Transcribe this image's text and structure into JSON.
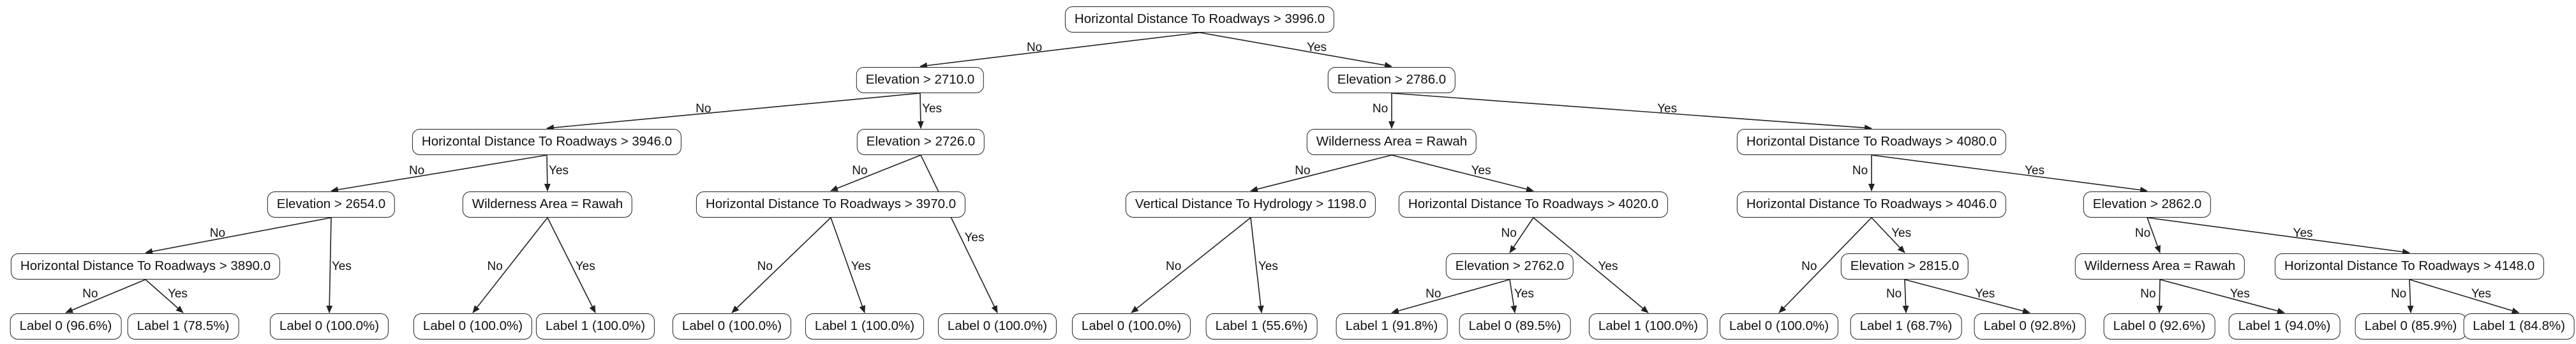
{
  "tree": {
    "nodes": [
      {
        "id": "n0",
        "text": "Horizontal Distance To Roadways > 3996.0"
      },
      {
        "id": "n1",
        "text": "Elevation > 2710.0"
      },
      {
        "id": "n2",
        "text": "Elevation > 2786.0"
      },
      {
        "id": "n3",
        "text": "Horizontal Distance To Roadways > 3946.0"
      },
      {
        "id": "n4",
        "text": "Elevation > 2726.0"
      },
      {
        "id": "n5",
        "text": "Wilderness Area = Rawah"
      },
      {
        "id": "n6",
        "text": "Horizontal Distance To Roadways > 4080.0"
      },
      {
        "id": "n7",
        "text": "Elevation > 2654.0"
      },
      {
        "id": "n8",
        "text": "Wilderness Area = Rawah"
      },
      {
        "id": "n9",
        "text": "Horizontal Distance To Roadways > 3970.0"
      },
      {
        "id": "n10",
        "text": "Vertical Distance To Hydrology > 1198.0"
      },
      {
        "id": "n11",
        "text": "Horizontal Distance To Roadways > 4020.0"
      },
      {
        "id": "n12",
        "text": "Horizontal Distance To Roadways > 4046.0"
      },
      {
        "id": "n13",
        "text": "Elevation > 2862.0"
      },
      {
        "id": "n14",
        "text": "Horizontal Distance To Roadways > 3890.0"
      },
      {
        "id": "n15",
        "text": "Elevation > 2762.0"
      },
      {
        "id": "n16",
        "text": "Elevation > 2815.0"
      },
      {
        "id": "n17",
        "text": "Wilderness Area = Rawah"
      },
      {
        "id": "n18",
        "text": "Horizontal Distance To Roadways > 4148.0"
      },
      {
        "id": "l1",
        "text": "Label 0 (96.6%)"
      },
      {
        "id": "l2",
        "text": "Label 1 (78.5%)"
      },
      {
        "id": "l3",
        "text": "Label 0 (100.0%)"
      },
      {
        "id": "l4",
        "text": "Label 0 (100.0%)"
      },
      {
        "id": "l5",
        "text": "Label 1 (100.0%)"
      },
      {
        "id": "l6",
        "text": "Label 0 (100.0%)"
      },
      {
        "id": "l7",
        "text": "Label 1 (100.0%)"
      },
      {
        "id": "l8",
        "text": "Label 0 (100.0%)"
      },
      {
        "id": "l9",
        "text": "Label 0 (100.0%)"
      },
      {
        "id": "l10",
        "text": "Label 1 (55.6%)"
      },
      {
        "id": "l11",
        "text": "Label 1 (91.8%)"
      },
      {
        "id": "l12",
        "text": "Label 0 (89.5%)"
      },
      {
        "id": "l13",
        "text": "Label 1 (100.0%)"
      },
      {
        "id": "l14",
        "text": "Label 0 (100.0%)"
      },
      {
        "id": "l15",
        "text": "Label 1 (68.7%)"
      },
      {
        "id": "l16",
        "text": "Label 0 (92.8%)"
      },
      {
        "id": "l17",
        "text": "Label 0 (92.6%)"
      },
      {
        "id": "l18",
        "text": "Label 1 (94.0%)"
      },
      {
        "id": "l19",
        "text": "Label 0 (85.9%)"
      },
      {
        "id": "l20",
        "text": "Label 1 (84.8%)"
      }
    ],
    "edges": [
      {
        "from": "n0",
        "to": "n1",
        "label": "No"
      },
      {
        "from": "n0",
        "to": "n2",
        "label": "Yes"
      },
      {
        "from": "n1",
        "to": "n3",
        "label": "No"
      },
      {
        "from": "n1",
        "to": "n4",
        "label": "Yes"
      },
      {
        "from": "n3",
        "to": "n7",
        "label": "No"
      },
      {
        "from": "n3",
        "to": "n8",
        "label": "Yes"
      },
      {
        "from": "n7",
        "to": "n14",
        "label": "No"
      },
      {
        "from": "n7",
        "to": "l3",
        "label": "Yes"
      },
      {
        "from": "n14",
        "to": "l1",
        "label": "No"
      },
      {
        "from": "n14",
        "to": "l2",
        "label": "Yes"
      },
      {
        "from": "n8",
        "to": "l4",
        "label": "No"
      },
      {
        "from": "n8",
        "to": "l5",
        "label": "Yes"
      },
      {
        "from": "n4",
        "to": "n9",
        "label": "No"
      },
      {
        "from": "n4",
        "to": "l8",
        "label": "Yes"
      },
      {
        "from": "n9",
        "to": "l6",
        "label": "No"
      },
      {
        "from": "n9",
        "to": "l7",
        "label": "Yes"
      },
      {
        "from": "n2",
        "to": "n5",
        "label": "No"
      },
      {
        "from": "n2",
        "to": "n6",
        "label": "Yes"
      },
      {
        "from": "n5",
        "to": "n10",
        "label": "No"
      },
      {
        "from": "n5",
        "to": "n11",
        "label": "Yes"
      },
      {
        "from": "n10",
        "to": "l9",
        "label": "No"
      },
      {
        "from": "n10",
        "to": "l10",
        "label": "Yes"
      },
      {
        "from": "n11",
        "to": "n15",
        "label": "No"
      },
      {
        "from": "n11",
        "to": "l13",
        "label": "Yes"
      },
      {
        "from": "n15",
        "to": "l11",
        "label": "No"
      },
      {
        "from": "n15",
        "to": "l12",
        "label": "Yes"
      },
      {
        "from": "n6",
        "to": "n12",
        "label": "No"
      },
      {
        "from": "n6",
        "to": "n13",
        "label": "Yes"
      },
      {
        "from": "n12",
        "to": "l14",
        "label": "No"
      },
      {
        "from": "n12",
        "to": "n16",
        "label": "Yes"
      },
      {
        "from": "n16",
        "to": "l15",
        "label": "No"
      },
      {
        "from": "n16",
        "to": "l16",
        "label": "Yes"
      },
      {
        "from": "n13",
        "to": "n17",
        "label": "No"
      },
      {
        "from": "n13",
        "to": "n18",
        "label": "Yes"
      },
      {
        "from": "n17",
        "to": "l17",
        "label": "No"
      },
      {
        "from": "n17",
        "to": "l18",
        "label": "Yes"
      },
      {
        "from": "n18",
        "to": "l19",
        "label": "No"
      },
      {
        "from": "n18",
        "to": "l20",
        "label": "Yes"
      }
    ]
  }
}
